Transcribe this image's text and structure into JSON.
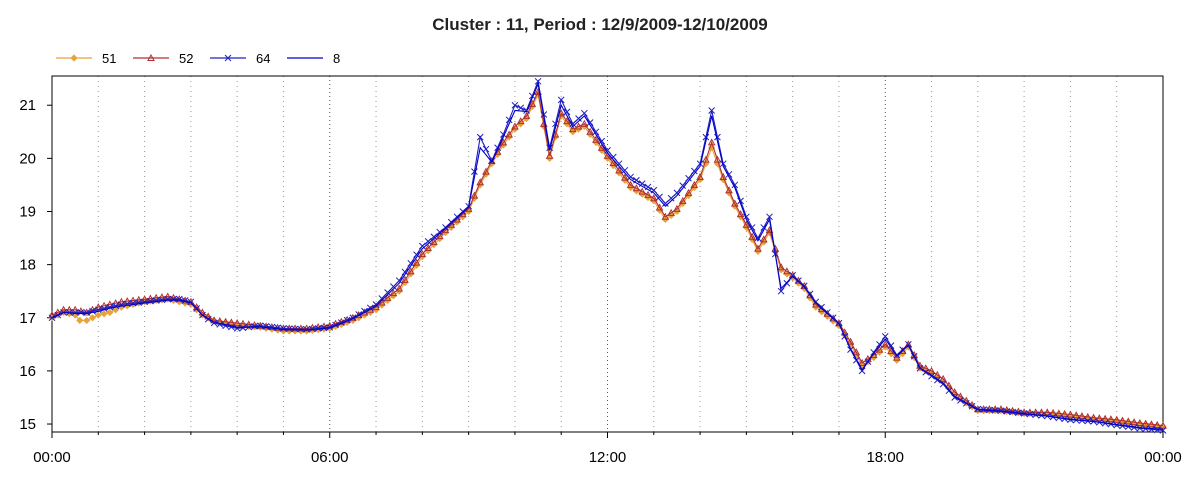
{
  "chart_data": {
    "type": "line",
    "title": "Cluster : 11, Period : 12/9/2009-12/10/2009",
    "xlabel": "",
    "ylabel": "",
    "x_ticks": [
      "00:00",
      "06:00",
      "12:00",
      "18:00",
      "00:00"
    ],
    "y_ticks": [
      "15",
      "16",
      "17",
      "18",
      "19",
      "20",
      "21"
    ],
    "xlim_hours": [
      0,
      24
    ],
    "ylim": [
      14.85,
      21.55
    ],
    "grid": "dotted",
    "legend_position": "top-left",
    "series": [
      {
        "name": "51",
        "color": "#e8a23a",
        "marker": "diamond",
        "points": [
          [
            0,
            17.0
          ],
          [
            0.25,
            17.1
          ],
          [
            0.5,
            17.05
          ],
          [
            0.6,
            16.95
          ],
          [
            0.75,
            16.95
          ],
          [
            1,
            17.05
          ],
          [
            1.25,
            17.1
          ],
          [
            1.5,
            17.2
          ],
          [
            2,
            17.3
          ],
          [
            2.5,
            17.35
          ],
          [
            2.75,
            17.3
          ],
          [
            3,
            17.25
          ],
          [
            3.25,
            17.05
          ],
          [
            3.5,
            16.95
          ],
          [
            4,
            16.85
          ],
          [
            4.5,
            16.82
          ],
          [
            5,
            16.75
          ],
          [
            5.5,
            16.75
          ],
          [
            6,
            16.8
          ],
          [
            6.5,
            16.95
          ],
          [
            7,
            17.15
          ],
          [
            7.5,
            17.5
          ],
          [
            8,
            18.15
          ],
          [
            8.5,
            18.6
          ],
          [
            9,
            19.0
          ],
          [
            9.25,
            19.5
          ],
          [
            9.5,
            19.9
          ],
          [
            9.75,
            20.25
          ],
          [
            10,
            20.55
          ],
          [
            10.25,
            20.75
          ],
          [
            10.5,
            21.2
          ],
          [
            10.75,
            20.0
          ],
          [
            11,
            20.8
          ],
          [
            11.25,
            20.5
          ],
          [
            11.5,
            20.6
          ],
          [
            11.75,
            20.3
          ],
          [
            12,
            20.0
          ],
          [
            12.5,
            19.45
          ],
          [
            13,
            19.2
          ],
          [
            13.25,
            18.85
          ],
          [
            13.5,
            19.0
          ],
          [
            14,
            19.6
          ],
          [
            14.25,
            20.2
          ],
          [
            14.5,
            19.6
          ],
          [
            14.75,
            19.1
          ],
          [
            15,
            18.7
          ],
          [
            15.25,
            18.25
          ],
          [
            15.5,
            18.6
          ],
          [
            15.75,
            17.9
          ],
          [
            16,
            17.75
          ],
          [
            16.25,
            17.55
          ],
          [
            16.5,
            17.2
          ],
          [
            17,
            16.85
          ],
          [
            17.25,
            16.5
          ],
          [
            17.5,
            16.1
          ],
          [
            17.75,
            16.25
          ],
          [
            18,
            16.45
          ],
          [
            18.25,
            16.2
          ],
          [
            18.5,
            16.45
          ],
          [
            18.75,
            16.05
          ],
          [
            19,
            15.95
          ],
          [
            19.25,
            15.8
          ],
          [
            19.5,
            15.55
          ],
          [
            20,
            15.25
          ],
          [
            20.5,
            15.25
          ],
          [
            21,
            15.2
          ],
          [
            21.5,
            15.2
          ],
          [
            22,
            15.15
          ],
          [
            22.5,
            15.1
          ],
          [
            23,
            15.05
          ],
          [
            23.5,
            15.0
          ],
          [
            24,
            14.95
          ]
        ]
      },
      {
        "name": "52",
        "color": "#b03030",
        "marker": "triangle",
        "points": [
          [
            0,
            17.05
          ],
          [
            0.25,
            17.15
          ],
          [
            0.5,
            17.15
          ],
          [
            0.75,
            17.1
          ],
          [
            1,
            17.2
          ],
          [
            1.25,
            17.25
          ],
          [
            1.5,
            17.3
          ],
          [
            2,
            17.35
          ],
          [
            2.5,
            17.4
          ],
          [
            2.75,
            17.35
          ],
          [
            3,
            17.3
          ],
          [
            3.25,
            17.1
          ],
          [
            3.5,
            16.95
          ],
          [
            4,
            16.9
          ],
          [
            4.5,
            16.85
          ],
          [
            5,
            16.8
          ],
          [
            5.5,
            16.8
          ],
          [
            6,
            16.85
          ],
          [
            6.5,
            17.0
          ],
          [
            7,
            17.2
          ],
          [
            7.5,
            17.55
          ],
          [
            8,
            18.2
          ],
          [
            8.5,
            18.65
          ],
          [
            9,
            19.05
          ],
          [
            9.25,
            19.55
          ],
          [
            9.5,
            19.95
          ],
          [
            9.75,
            20.3
          ],
          [
            10,
            20.6
          ],
          [
            10.25,
            20.8
          ],
          [
            10.5,
            21.25
          ],
          [
            10.75,
            20.05
          ],
          [
            11,
            20.85
          ],
          [
            11.25,
            20.55
          ],
          [
            11.5,
            20.65
          ],
          [
            11.75,
            20.35
          ],
          [
            12,
            20.05
          ],
          [
            12.5,
            19.5
          ],
          [
            13,
            19.25
          ],
          [
            13.25,
            18.9
          ],
          [
            13.5,
            19.05
          ],
          [
            14,
            19.65
          ],
          [
            14.25,
            20.3
          ],
          [
            14.5,
            19.65
          ],
          [
            14.75,
            19.15
          ],
          [
            15,
            18.75
          ],
          [
            15.25,
            18.3
          ],
          [
            15.5,
            18.65
          ],
          [
            15.75,
            17.95
          ],
          [
            16,
            17.8
          ],
          [
            16.25,
            17.6
          ],
          [
            16.5,
            17.25
          ],
          [
            17,
            16.9
          ],
          [
            17.25,
            16.55
          ],
          [
            17.5,
            16.15
          ],
          [
            17.75,
            16.3
          ],
          [
            18,
            16.5
          ],
          [
            18.25,
            16.25
          ],
          [
            18.5,
            16.5
          ],
          [
            18.75,
            16.1
          ],
          [
            19,
            16.0
          ],
          [
            19.25,
            15.85
          ],
          [
            19.5,
            15.6
          ],
          [
            20,
            15.28
          ],
          [
            20.5,
            15.28
          ],
          [
            21,
            15.22
          ],
          [
            21.5,
            15.22
          ],
          [
            22,
            15.18
          ],
          [
            22.5,
            15.12
          ],
          [
            23,
            15.08
          ],
          [
            23.5,
            15.02
          ],
          [
            24,
            14.97
          ]
        ]
      },
      {
        "name": "64",
        "color": "#2020c0",
        "marker": "x",
        "points": [
          [
            0,
            17.0
          ],
          [
            0.25,
            17.1
          ],
          [
            0.5,
            17.1
          ],
          [
            0.75,
            17.1
          ],
          [
            1,
            17.15
          ],
          [
            1.25,
            17.2
          ],
          [
            1.5,
            17.25
          ],
          [
            2,
            17.3
          ],
          [
            2.5,
            17.35
          ],
          [
            2.75,
            17.35
          ],
          [
            3,
            17.3
          ],
          [
            3.25,
            17.05
          ],
          [
            3.5,
            16.9
          ],
          [
            4,
            16.8
          ],
          [
            4.5,
            16.85
          ],
          [
            5,
            16.8
          ],
          [
            5.5,
            16.78
          ],
          [
            6,
            16.82
          ],
          [
            6.5,
            17.0
          ],
          [
            7,
            17.25
          ],
          [
            7.5,
            17.7
          ],
          [
            8,
            18.35
          ],
          [
            8.5,
            18.7
          ],
          [
            9,
            19.1
          ],
          [
            9.25,
            20.4
          ],
          [
            9.5,
            19.95
          ],
          [
            9.75,
            20.45
          ],
          [
            10,
            21.0
          ],
          [
            10.25,
            20.9
          ],
          [
            10.5,
            21.45
          ],
          [
            10.75,
            20.2
          ],
          [
            11,
            21.1
          ],
          [
            11.25,
            20.65
          ],
          [
            11.5,
            20.85
          ],
          [
            11.75,
            20.5
          ],
          [
            12,
            20.15
          ],
          [
            12.5,
            19.65
          ],
          [
            13,
            19.4
          ],
          [
            13.25,
            19.15
          ],
          [
            13.5,
            19.35
          ],
          [
            14,
            19.9
          ],
          [
            14.25,
            20.9
          ],
          [
            14.5,
            19.9
          ],
          [
            14.75,
            19.5
          ],
          [
            15,
            18.9
          ],
          [
            15.25,
            18.5
          ],
          [
            15.5,
            18.9
          ],
          [
            15.75,
            17.5
          ],
          [
            16,
            17.8
          ],
          [
            16.25,
            17.6
          ],
          [
            16.5,
            17.3
          ],
          [
            17,
            16.9
          ],
          [
            17.25,
            16.4
          ],
          [
            17.5,
            16.0
          ],
          [
            17.75,
            16.35
          ],
          [
            18,
            16.65
          ],
          [
            18.25,
            16.3
          ],
          [
            18.5,
            16.5
          ],
          [
            18.75,
            16.05
          ],
          [
            19,
            15.9
          ],
          [
            19.25,
            15.75
          ],
          [
            19.5,
            15.5
          ],
          [
            20,
            15.28
          ],
          [
            20.5,
            15.25
          ],
          [
            21,
            15.2
          ],
          [
            21.5,
            15.15
          ],
          [
            22,
            15.08
          ],
          [
            22.5,
            15.05
          ],
          [
            23,
            14.98
          ],
          [
            23.5,
            14.92
          ],
          [
            24,
            14.88
          ]
        ]
      },
      {
        "name": "8",
        "color": "#0000cc",
        "marker": "none",
        "points": [
          [
            0,
            17.0
          ],
          [
            0.25,
            17.1
          ],
          [
            0.5,
            17.08
          ],
          [
            0.75,
            17.08
          ],
          [
            1,
            17.12
          ],
          [
            1.25,
            17.18
          ],
          [
            1.5,
            17.22
          ],
          [
            2,
            17.28
          ],
          [
            2.5,
            17.33
          ],
          [
            2.75,
            17.33
          ],
          [
            3,
            17.28
          ],
          [
            3.25,
            17.05
          ],
          [
            3.5,
            16.92
          ],
          [
            4,
            16.82
          ],
          [
            4.5,
            16.83
          ],
          [
            5,
            16.78
          ],
          [
            5.5,
            16.77
          ],
          [
            6,
            16.81
          ],
          [
            6.5,
            16.98
          ],
          [
            7,
            17.22
          ],
          [
            7.5,
            17.65
          ],
          [
            8,
            18.3
          ],
          [
            8.5,
            18.68
          ],
          [
            9,
            19.08
          ],
          [
            9.25,
            20.2
          ],
          [
            9.5,
            19.93
          ],
          [
            9.75,
            20.4
          ],
          [
            10,
            20.9
          ],
          [
            10.25,
            20.88
          ],
          [
            10.5,
            21.4
          ],
          [
            10.75,
            20.15
          ],
          [
            11,
            21.0
          ],
          [
            11.25,
            20.6
          ],
          [
            11.5,
            20.8
          ],
          [
            11.75,
            20.45
          ],
          [
            12,
            20.1
          ],
          [
            12.5,
            19.6
          ],
          [
            13,
            19.35
          ],
          [
            13.25,
            19.1
          ],
          [
            13.5,
            19.3
          ],
          [
            14,
            19.85
          ],
          [
            14.25,
            20.8
          ],
          [
            14.5,
            19.85
          ],
          [
            14.75,
            19.45
          ],
          [
            15,
            18.85
          ],
          [
            15.25,
            18.45
          ],
          [
            15.5,
            18.85
          ],
          [
            15.75,
            17.55
          ],
          [
            16,
            17.78
          ],
          [
            16.25,
            17.58
          ],
          [
            16.5,
            17.28
          ],
          [
            17,
            16.88
          ],
          [
            17.25,
            16.42
          ],
          [
            17.5,
            16.02
          ],
          [
            17.75,
            16.33
          ],
          [
            18,
            16.6
          ],
          [
            18.25,
            16.28
          ],
          [
            18.5,
            16.48
          ],
          [
            18.75,
            16.05
          ],
          [
            19,
            15.92
          ],
          [
            19.25,
            15.77
          ],
          [
            19.5,
            15.52
          ],
          [
            20,
            15.27
          ],
          [
            20.5,
            15.24
          ],
          [
            21,
            15.19
          ],
          [
            21.5,
            15.15
          ],
          [
            22,
            15.09
          ],
          [
            22.5,
            15.05
          ],
          [
            23,
            14.99
          ],
          [
            23.5,
            14.93
          ],
          [
            24,
            14.9
          ]
        ]
      }
    ]
  }
}
